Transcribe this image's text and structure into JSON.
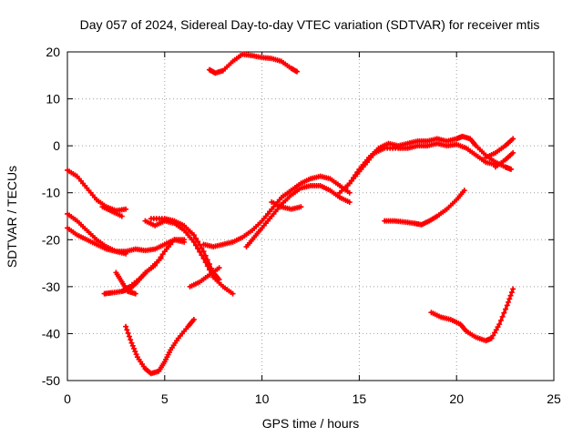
{
  "chart_data": {
    "type": "scatter",
    "title": "Day 057 of 2024, Sidereal Day-to-day VTEC variation (SDTVAR) for receiver mtis",
    "xlabel": "GPS time / hours",
    "ylabel": "SDTVAR / TECUs",
    "xlim": [
      0,
      25
    ],
    "ylim": [
      -50,
      20
    ],
    "xticks": [
      0,
      5,
      10,
      15,
      20,
      25
    ],
    "yticks": [
      -50,
      -40,
      -30,
      -20,
      -10,
      0,
      10,
      20
    ],
    "xtick_labels": [
      "0",
      "5",
      "10",
      "15",
      "20",
      "25"
    ],
    "ytick_labels": [
      "-50",
      "-40",
      "-30",
      "-20",
      "-10",
      "0",
      "10",
      "20"
    ],
    "grid": true,
    "marker": "plus",
    "color": "#ff0000",
    "series": [
      {
        "name": "arc1",
        "points": [
          [
            0,
            -5.2
          ],
          [
            0.5,
            -6.5
          ],
          [
            1,
            -9
          ],
          [
            1.5,
            -11.5
          ],
          [
            2,
            -13
          ],
          [
            2.5,
            -13.8
          ],
          [
            3,
            -13.5
          ]
        ]
      },
      {
        "name": "arc2",
        "points": [
          [
            1.8,
            -13
          ],
          [
            2.3,
            -14
          ],
          [
            2.8,
            -15
          ]
        ]
      },
      {
        "name": "arc3",
        "points": [
          [
            0,
            -14.5
          ],
          [
            0.5,
            -16
          ],
          [
            1,
            -18
          ],
          [
            1.5,
            -20
          ],
          [
            2,
            -21.5
          ],
          [
            2.5,
            -22.5
          ],
          [
            3,
            -22.5
          ],
          [
            3.5,
            -22
          ],
          [
            4,
            -22.3
          ],
          [
            4.5,
            -22
          ],
          [
            5,
            -21
          ],
          [
            5.5,
            -20
          ],
          [
            6,
            -20.5
          ]
        ]
      },
      {
        "name": "arc4",
        "points": [
          [
            0,
            -17.5
          ],
          [
            0.5,
            -19
          ],
          [
            1,
            -20
          ],
          [
            1.5,
            -21
          ],
          [
            2,
            -22
          ],
          [
            2.5,
            -22.5
          ],
          [
            3,
            -23
          ]
        ]
      },
      {
        "name": "arc5",
        "points": [
          [
            1.9,
            -31.5
          ],
          [
            2.3,
            -31.3
          ],
          [
            2.8,
            -31
          ],
          [
            3.2,
            -30.5
          ],
          [
            3.6,
            -29
          ],
          [
            4,
            -27
          ],
          [
            4.5,
            -25.5
          ],
          [
            5,
            -22.5
          ],
          [
            5.5,
            -20
          ],
          [
            6,
            -20
          ]
        ]
      },
      {
        "name": "arc6",
        "points": [
          [
            2.5,
            -27
          ],
          [
            2.8,
            -29
          ],
          [
            3.1,
            -31
          ],
          [
            3.5,
            -31.5
          ]
        ]
      },
      {
        "name": "arc7",
        "points": [
          [
            2.8,
            -31
          ],
          [
            3.2,
            -30
          ],
          [
            3.8,
            -28
          ],
          [
            4.3,
            -26
          ],
          [
            4.8,
            -24
          ]
        ]
      },
      {
        "name": "arc8",
        "points": [
          [
            4,
            -16
          ],
          [
            4.5,
            -17
          ],
          [
            5,
            -16
          ],
          [
            5.5,
            -16.5
          ],
          [
            6,
            -18
          ],
          [
            6.5,
            -20.5
          ],
          [
            7,
            -24
          ],
          [
            7.5,
            -28
          ],
          [
            8,
            -30
          ],
          [
            8.5,
            -31.5
          ]
        ]
      },
      {
        "name": "arc9",
        "points": [
          [
            4.3,
            -15.5
          ],
          [
            5,
            -15.5
          ],
          [
            5.5,
            -16
          ],
          [
            6,
            -17
          ],
          [
            6.5,
            -19
          ],
          [
            7,
            -22.5
          ],
          [
            7.5,
            -27
          ],
          [
            7.8,
            -28.5
          ]
        ]
      },
      {
        "name": "arc10",
        "points": [
          [
            6.3,
            -30
          ],
          [
            6.8,
            -29
          ],
          [
            7.3,
            -27.5
          ],
          [
            7.8,
            -26
          ]
        ]
      },
      {
        "name": "arc11",
        "points": [
          [
            3,
            -38.5
          ],
          [
            3.3,
            -42
          ],
          [
            3.6,
            -45
          ],
          [
            4,
            -47.5
          ],
          [
            4.3,
            -48.5
          ],
          [
            4.7,
            -48
          ],
          [
            5,
            -46
          ],
          [
            5.3,
            -43.5
          ],
          [
            5.7,
            -41
          ],
          [
            6.2,
            -38.5
          ],
          [
            6.5,
            -37
          ]
        ]
      },
      {
        "name": "arc12",
        "points": [
          [
            7,
            -21
          ],
          [
            7.5,
            -21.5
          ],
          [
            8,
            -21
          ],
          [
            8.5,
            -20.5
          ],
          [
            9,
            -19.5
          ],
          [
            9.5,
            -18
          ],
          [
            10,
            -16
          ],
          [
            10.5,
            -13.5
          ],
          [
            11,
            -11
          ],
          [
            11.5,
            -9.5
          ],
          [
            12,
            -8
          ],
          [
            12.5,
            -7
          ],
          [
            13,
            -6.5
          ],
          [
            13.5,
            -7
          ],
          [
            14,
            -8.5
          ],
          [
            14.5,
            -10
          ]
        ]
      },
      {
        "name": "arc13",
        "points": [
          [
            9.2,
            -21.5
          ],
          [
            9.6,
            -19.5
          ],
          [
            10,
            -17.5
          ],
          [
            10.5,
            -15
          ],
          [
            11,
            -12.5
          ],
          [
            11.5,
            -10.5
          ],
          [
            12,
            -9
          ],
          [
            12.5,
            -8.5
          ],
          [
            13,
            -8.5
          ],
          [
            13.5,
            -9.5
          ],
          [
            14,
            -11
          ],
          [
            14.5,
            -12
          ]
        ]
      },
      {
        "name": "arc14",
        "points": [
          [
            10.5,
            -12
          ],
          [
            11,
            -13
          ],
          [
            11.5,
            -13.5
          ],
          [
            12,
            -13
          ]
        ]
      },
      {
        "name": "arc15",
        "points": [
          [
            14,
            -10
          ],
          [
            14.5,
            -8
          ],
          [
            15,
            -5
          ],
          [
            15.5,
            -2.5
          ],
          [
            16,
            -0.5
          ],
          [
            16.5,
            0.5
          ],
          [
            17,
            0
          ],
          [
            17.5,
            0.5
          ],
          [
            18,
            1
          ],
          [
            18.5,
            1
          ],
          [
            19,
            1.5
          ],
          [
            19.5,
            1
          ],
          [
            20,
            1.5
          ],
          [
            20.3,
            2
          ],
          [
            20.7,
            1.5
          ],
          [
            21,
            0
          ],
          [
            21.5,
            -2
          ],
          [
            22,
            -3.5
          ],
          [
            22.5,
            -4.5
          ],
          [
            22.8,
            -5
          ]
        ]
      },
      {
        "name": "arc16",
        "points": [
          [
            14.3,
            -9
          ],
          [
            14.8,
            -6.5
          ],
          [
            15.3,
            -4
          ],
          [
            15.8,
            -1.5
          ],
          [
            16.3,
            -0.5
          ],
          [
            17,
            -0.5
          ],
          [
            17.5,
            -0.5
          ],
          [
            18,
            0
          ],
          [
            18.5,
            0
          ],
          [
            19,
            0.5
          ],
          [
            19.5,
            0
          ],
          [
            20,
            0.3
          ],
          [
            20.5,
            -0.5
          ],
          [
            21,
            -2
          ],
          [
            21.5,
            -3.5
          ],
          [
            22,
            -4
          ]
        ]
      },
      {
        "name": "arc17",
        "points": [
          [
            21.5,
            -2.5
          ],
          [
            22,
            -1.5
          ],
          [
            22.5,
            0
          ],
          [
            22.9,
            1.5
          ]
        ]
      },
      {
        "name": "arc18",
        "points": [
          [
            22,
            -4.5
          ],
          [
            22.5,
            -3
          ],
          [
            22.9,
            -1.5
          ]
        ]
      },
      {
        "name": "arc19",
        "points": [
          [
            7.3,
            16.2
          ],
          [
            7.6,
            15.5
          ],
          [
            8,
            16
          ],
          [
            8.5,
            18
          ],
          [
            9,
            19.5
          ],
          [
            9.5,
            19.2
          ],
          [
            10,
            18.8
          ],
          [
            10.5,
            18.6
          ],
          [
            11,
            18
          ],
          [
            11.5,
            16.5
          ],
          [
            11.8,
            15.8
          ]
        ]
      },
      {
        "name": "arc20",
        "points": [
          [
            16.3,
            -16
          ],
          [
            16.8,
            -16
          ],
          [
            17.3,
            -16.2
          ],
          [
            17.8,
            -16.5
          ],
          [
            18.2,
            -16.8
          ],
          [
            18.6,
            -16
          ],
          [
            19,
            -15
          ],
          [
            19.5,
            -13.5
          ],
          [
            20,
            -11.5
          ],
          [
            20.4,
            -9.5
          ]
        ]
      },
      {
        "name": "arc21",
        "points": [
          [
            18.7,
            -35.5
          ],
          [
            19.2,
            -36.5
          ],
          [
            19.7,
            -37
          ],
          [
            20.2,
            -38
          ],
          [
            20.5,
            -39.5
          ],
          [
            21,
            -40.8
          ],
          [
            21.5,
            -41.5
          ],
          [
            21.8,
            -41
          ],
          [
            22.2,
            -38
          ],
          [
            22.6,
            -34
          ],
          [
            22.9,
            -30.5
          ]
        ]
      }
    ]
  }
}
